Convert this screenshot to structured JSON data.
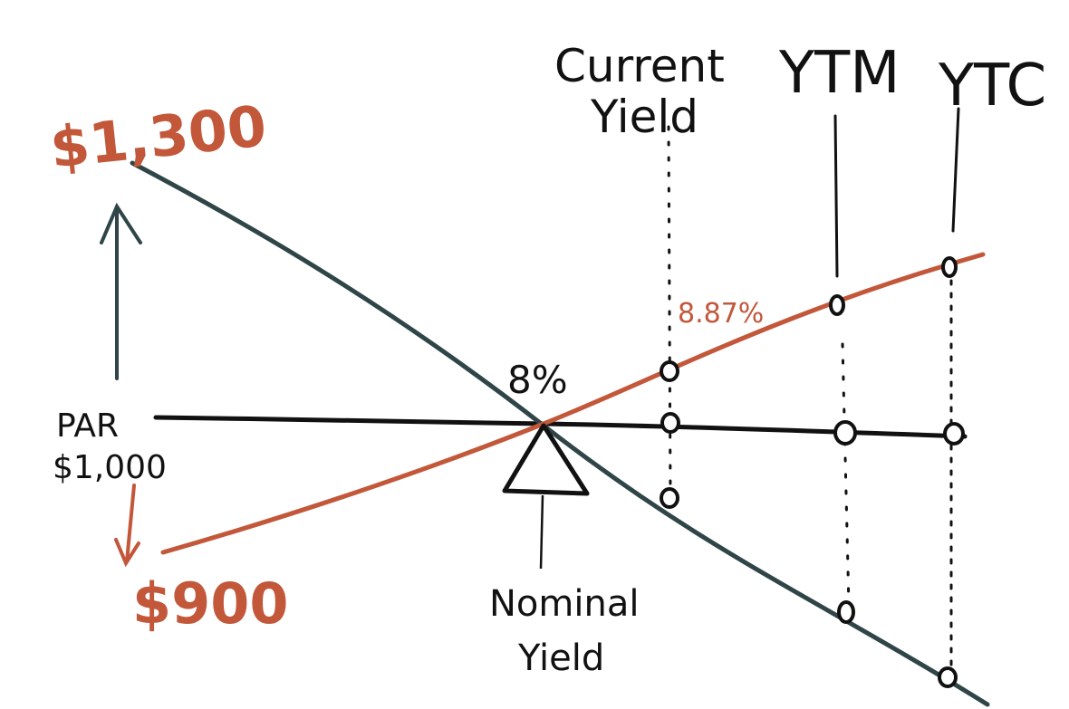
{
  "labels": {
    "price_high": "$1,300",
    "par_line1": "PAR",
    "par_line2": "$1,000",
    "price_low": "$900",
    "nominal_pct": "8%",
    "current_pct": "8.87%",
    "nominal_line1": "Nominal",
    "nominal_line2": "Yield",
    "current_line1": "Current",
    "current_line2": "Yield",
    "ytm": "YTM",
    "ytc": "YTC"
  },
  "colors": {
    "premium_line": "#2f4548",
    "discount_line": "#c2573a",
    "par_line": "#111111",
    "background": "#ffffff"
  }
}
